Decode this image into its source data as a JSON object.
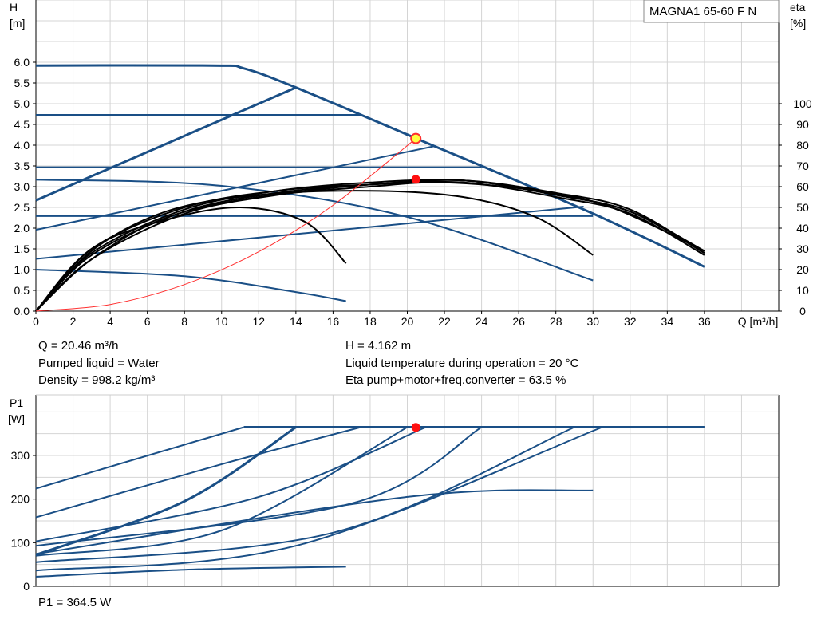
{
  "chart_data": [
    {
      "type": "line",
      "title": "MAGNA1 65-60 F N",
      "xlabel": "Q [m³/h]",
      "ylabel_line1": "H",
      "ylabel_line2": "[m]",
      "y2label_line1": "eta",
      "y2label_line2": "[%]",
      "xlim": [
        0,
        40
      ],
      "ylim": [
        0,
        6.0
      ],
      "y2lim": [
        0,
        100
      ],
      "x_ticks": [
        0,
        2,
        4,
        6,
        8,
        10,
        12,
        14,
        16,
        18,
        20,
        22,
        24,
        26,
        28,
        30,
        32,
        34,
        36
      ],
      "x_tick_labels": [
        "0",
        "2",
        "4",
        "6",
        "8",
        "10",
        "12",
        "14",
        "16",
        "18",
        "20",
        "22",
        "24",
        "26",
        "28",
        "30",
        "32",
        "34",
        "36"
      ],
      "y_ticks": [
        0,
        0.5,
        1.0,
        1.5,
        2.0,
        2.5,
        3.0,
        3.5,
        4.0,
        4.5,
        5.0,
        5.5,
        6.0
      ],
      "y_tick_labels": [
        "0.0",
        "0.5",
        "1.0",
        "1.5",
        "2.0",
        "2.5",
        "3.0",
        "3.5",
        "4.0",
        "4.5",
        "5.0",
        "5.5",
        "6.0"
      ],
      "y2_ticks": [
        0,
        10,
        20,
        30,
        40,
        50,
        60,
        70,
        80,
        90,
        100
      ],
      "y2_tick_labels": [
        "0",
        "10",
        "20",
        "30",
        "40",
        "50",
        "60",
        "70",
        "80",
        "90",
        "100"
      ],
      "grid": true,
      "colors": {
        "curve": "#1a4f86",
        "eta": "#000000",
        "system": "#ff3030",
        "duty_fill": "#ffff40",
        "eta_point": "#ff1010"
      },
      "series_head": [
        {
          "x": [
            0,
            9.5,
            11.2,
            14,
            20.5,
            30,
            36
          ],
          "y": [
            5.92,
            5.92,
            5.85,
            5.39,
            4.16,
            2.35,
            1.07
          ],
          "bold": true
        },
        {
          "x": [
            0,
            17.5
          ],
          "y": [
            4.73,
            4.73
          ]
        },
        {
          "x": [
            0,
            24
          ],
          "y": [
            3.47,
            3.47
          ]
        },
        {
          "x": [
            0,
            30
          ],
          "y": [
            2.29,
            2.29
          ]
        },
        {
          "x": [
            0,
            10,
            20,
            30
          ],
          "y": [
            3.17,
            3.02,
            2.27,
            0.74
          ]
        },
        {
          "x": [
            0,
            8,
            14,
            16.7
          ],
          "y": [
            1.0,
            0.84,
            0.46,
            0.24
          ]
        }
      ],
      "series_const": [
        {
          "x": [
            0,
            14
          ],
          "y": [
            2.67,
            5.39
          ],
          "bold": true
        },
        {
          "x": [
            0,
            21.5
          ],
          "y": [
            1.96,
            3.98
          ]
        },
        {
          "x": [
            0,
            29.5
          ],
          "y": [
            1.26,
            2.52
          ]
        }
      ],
      "series_eta": [
        {
          "x": [
            0,
            3,
            7,
            11,
            14.5,
            16.7
          ],
          "y": [
            0,
            30,
            44,
            50,
            43,
            23
          ]
        },
        {
          "x": [
            0,
            3,
            7,
            12,
            18,
            23,
            27,
            30
          ],
          "y": [
            0,
            29,
            48,
            56,
            58,
            55,
            45,
            27
          ]
        },
        {
          "x": [
            0,
            3,
            7,
            12,
            18,
            22,
            27,
            31,
            36
          ],
          "y": [
            0,
            25,
            45,
            55,
            60,
            62,
            58,
            50,
            29
          ]
        },
        {
          "x": [
            0,
            3,
            8,
            13,
            18,
            23,
            28,
            32,
            36
          ],
          "y": [
            0,
            25,
            47,
            56,
            61,
            63,
            57,
            49,
            28
          ]
        },
        {
          "x": [
            0,
            3,
            8,
            13,
            18,
            23,
            28,
            32,
            36
          ],
          "y": [
            0,
            27,
            48,
            57,
            61,
            63,
            56,
            48,
            29
          ]
        },
        {
          "x": [
            0,
            3,
            8,
            13,
            18,
            23,
            28,
            32,
            36
          ],
          "y": [
            0,
            28,
            49,
            58,
            62,
            63,
            56,
            48,
            28
          ]
        },
        {
          "x": [
            0,
            3,
            8,
            13,
            18,
            23,
            28,
            32,
            36
          ],
          "y": [
            0,
            30,
            50,
            58,
            61,
            62,
            55,
            47,
            27
          ]
        }
      ],
      "system_curve": {
        "x": [
          0,
          4,
          8,
          12,
          16,
          20.46
        ],
        "y": [
          0,
          0.16,
          0.64,
          1.43,
          2.55,
          4.16
        ]
      },
      "duty_point": {
        "x": 20.46,
        "y": 4.162
      },
      "eta_point": {
        "x": 20.46,
        "y": 63.5
      }
    },
    {
      "type": "line",
      "ylabel_line1": "P1",
      "ylabel_line2": "[W]",
      "xlim": [
        0,
        40
      ],
      "ylim": [
        0,
        400
      ],
      "y_ticks": [
        0,
        100,
        200,
        300
      ],
      "y_tick_labels": [
        "0",
        "100",
        "200",
        "300"
      ],
      "grid": true,
      "series_power": [
        {
          "x": [
            0,
            11.2
          ],
          "y": [
            224,
            365
          ]
        },
        {
          "x": [
            11.2,
            36
          ],
          "y": [
            365,
            365
          ],
          "bold": true
        },
        {
          "x": [
            0,
            8,
            14
          ],
          "y": [
            72,
            195,
            365
          ],
          "bold": true
        },
        {
          "x": [
            0,
            10,
            17.5
          ],
          "y": [
            158,
            280,
            365
          ]
        },
        {
          "x": [
            0,
            12,
            21
          ],
          "y": [
            103,
            205,
            365
          ]
        },
        {
          "x": [
            0,
            10,
            20
          ],
          "y": [
            70,
            128,
            365
          ]
        },
        {
          "x": [
            0,
            17,
            24
          ],
          "y": [
            93,
            190,
            365
          ]
        },
        {
          "x": [
            0,
            16,
            29
          ],
          "y": [
            55,
            123,
            365
          ]
        },
        {
          "x": [
            0,
            14,
            30.5
          ],
          "y": [
            36,
            93,
            365
          ]
        },
        {
          "x": [
            0,
            20,
            30
          ],
          "y": [
            74,
            205,
            220
          ]
        },
        {
          "x": [
            0,
            8,
            16.7
          ],
          "y": [
            22,
            38,
            45
          ]
        }
      ],
      "power_point": {
        "x": 20.46,
        "y": 364.5
      }
    }
  ],
  "info": {
    "q": "Q = 20.46 m³/h",
    "liquid": "Pumped liquid = Water",
    "density": "Density = 998.2 kg/m³",
    "h": "H = 4.162 m",
    "temp": "Liquid temperature during operation = 20 °C",
    "eta": "Eta pump+motor+freq.converter = 63.5 %",
    "p1": "P1 = 364.5 W"
  }
}
